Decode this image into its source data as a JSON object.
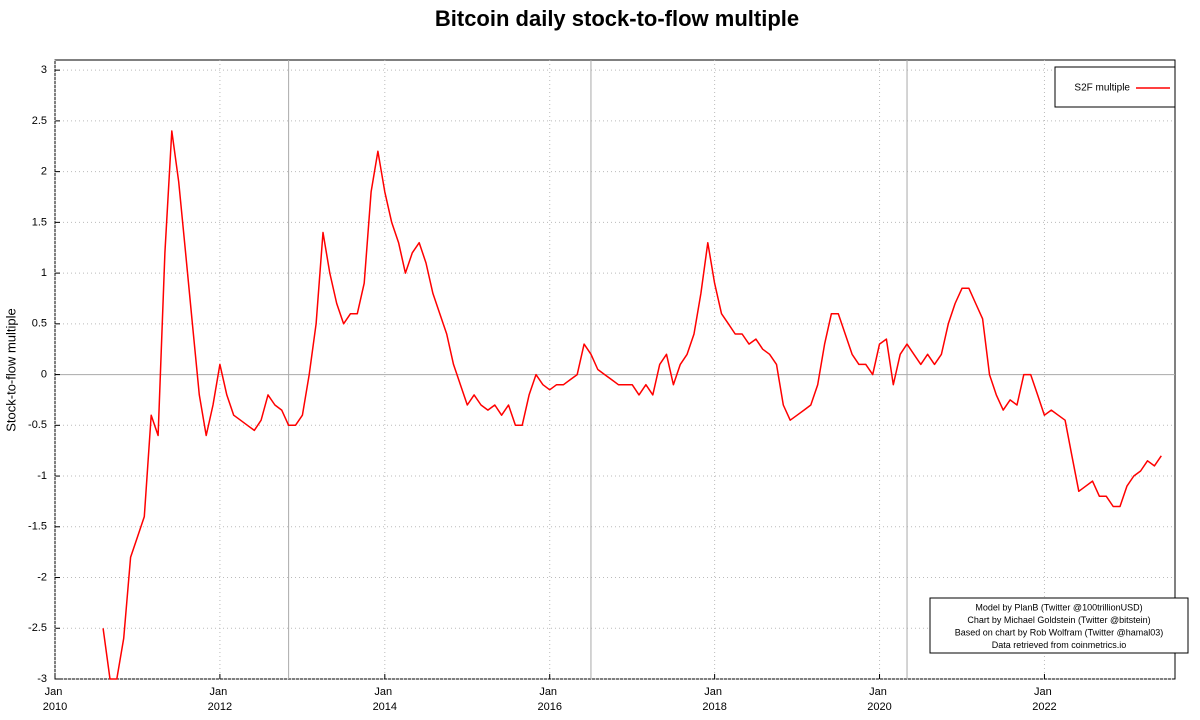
{
  "chart_data": {
    "type": "line",
    "title": "Bitcoin daily stock-to-flow multiple",
    "y_label": "Stock-to-flow multiple",
    "notes": [
      "Model by PlanB (Twitter @100trillionUSD)",
      "Chart by Michael Goldstein (Twitter @bitstein)",
      "Based on chart by Rob Wolfram (Twitter @hamal03)",
      "Data retrieved from coinmetrics.io"
    ],
    "legend": "top-right",
    "grid": true,
    "halvings": [
      "2012-11",
      "2016-07",
      "2020-05"
    ],
    "xlim": [
      "2010-01",
      "2023-08"
    ],
    "xticks": [
      {
        "value": "2010-01",
        "label": "Jan 2010"
      },
      {
        "value": "2012-01",
        "label": "Jan 2012"
      },
      {
        "value": "2014-01",
        "label": "Jan 2014"
      },
      {
        "value": "2016-01",
        "label": "Jan 2016"
      },
      {
        "value": "2018-01",
        "label": "Jan 2018"
      },
      {
        "value": "2020-01",
        "label": "Jan 2020"
      },
      {
        "value": "2022-01",
        "label": "Jan 2022"
      }
    ],
    "ylim": [
      -3,
      3.1
    ],
    "yticks": [
      -3,
      -2.5,
      -2,
      -1.5,
      -1,
      -0.5,
      0,
      0.5,
      1,
      1.5,
      2,
      2.5,
      3
    ],
    "x": [
      "2010-08",
      "2010-09",
      "2010-10",
      "2010-11",
      "2010-12",
      "2011-01",
      "2011-02",
      "2011-03",
      "2011-04",
      "2011-05",
      "2011-06",
      "2011-07",
      "2011-08",
      "2011-09",
      "2011-10",
      "2011-11",
      "2011-12",
      "2012-01",
      "2012-02",
      "2012-03",
      "2012-04",
      "2012-05",
      "2012-06",
      "2012-07",
      "2012-08",
      "2012-09",
      "2012-10",
      "2012-11",
      "2012-12",
      "2013-01",
      "2013-02",
      "2013-03",
      "2013-04",
      "2013-05",
      "2013-06",
      "2013-07",
      "2013-08",
      "2013-09",
      "2013-10",
      "2013-11",
      "2013-12",
      "2014-01",
      "2014-02",
      "2014-03",
      "2014-04",
      "2014-05",
      "2014-06",
      "2014-07",
      "2014-08",
      "2014-09",
      "2014-10",
      "2014-11",
      "2014-12",
      "2015-01",
      "2015-02",
      "2015-03",
      "2015-04",
      "2015-05",
      "2015-06",
      "2015-07",
      "2015-08",
      "2015-09",
      "2015-10",
      "2015-11",
      "2015-12",
      "2016-01",
      "2016-02",
      "2016-03",
      "2016-04",
      "2016-05",
      "2016-06",
      "2016-07",
      "2016-08",
      "2016-09",
      "2016-10",
      "2016-11",
      "2016-12",
      "2017-01",
      "2017-02",
      "2017-03",
      "2017-04",
      "2017-05",
      "2017-06",
      "2017-07",
      "2017-08",
      "2017-09",
      "2017-10",
      "2017-11",
      "2017-12",
      "2018-01",
      "2018-02",
      "2018-03",
      "2018-04",
      "2018-05",
      "2018-06",
      "2018-07",
      "2018-08",
      "2018-09",
      "2018-10",
      "2018-11",
      "2018-12",
      "2019-01",
      "2019-02",
      "2019-03",
      "2019-04",
      "2019-05",
      "2019-06",
      "2019-07",
      "2019-08",
      "2019-09",
      "2019-10",
      "2019-11",
      "2019-12",
      "2020-01",
      "2020-02",
      "2020-03",
      "2020-04",
      "2020-05",
      "2020-06",
      "2020-07",
      "2020-08",
      "2020-09",
      "2020-10",
      "2020-11",
      "2020-12",
      "2021-01",
      "2021-02",
      "2021-03",
      "2021-04",
      "2021-05",
      "2021-06",
      "2021-07",
      "2021-08",
      "2021-09",
      "2021-10",
      "2021-11",
      "2021-12",
      "2022-01",
      "2022-02",
      "2022-03",
      "2022-04",
      "2022-05",
      "2022-06",
      "2022-07",
      "2022-08",
      "2022-09",
      "2022-10",
      "2022-11",
      "2022-12",
      "2023-01",
      "2023-02",
      "2023-03",
      "2023-04",
      "2023-05",
      "2023-06"
    ],
    "series": [
      {
        "name": "S2F multiple",
        "color": "#ff0000",
        "values": [
          -2.5,
          -3,
          -3,
          -2.6,
          -1.8,
          -1.6,
          -1.4,
          -0.4,
          -0.6,
          1.2,
          2.4,
          1.9,
          1.2,
          0.5,
          -0.2,
          -0.6,
          -0.3,
          0.1,
          -0.2,
          -0.4,
          -0.45,
          -0.5,
          -0.55,
          -0.45,
          -0.2,
          -0.3,
          -0.35,
          -0.5,
          -0.5,
          -0.4,
          0,
          0.5,
          1.4,
          1,
          0.7,
          0.5,
          0.6,
          0.6,
          0.9,
          1.8,
          2.2,
          1.8,
          1.5,
          1.3,
          1,
          1.2,
          1.3,
          1.1,
          0.8,
          0.6,
          0.4,
          0.1,
          -0.1,
          -0.3,
          -0.2,
          -0.3,
          -0.35,
          -0.3,
          -0.4,
          -0.3,
          -0.5,
          -0.5,
          -0.2,
          0,
          -0.1,
          -0.15,
          -0.1,
          -0.1,
          -0.05,
          0,
          0.3,
          0.2,
          0.05,
          0,
          -0.05,
          -0.1,
          -0.1,
          -0.1,
          -0.2,
          -0.1,
          -0.2,
          0.1,
          0.2,
          -0.1,
          0.1,
          0.2,
          0.4,
          0.8,
          1.3,
          0.9,
          0.6,
          0.5,
          0.4,
          0.4,
          0.3,
          0.35,
          0.25,
          0.2,
          0.1,
          -0.3,
          -0.45,
          -0.4,
          -0.35,
          -0.3,
          -0.1,
          0.3,
          0.6,
          0.6,
          0.4,
          0.2,
          0.1,
          0.1,
          0,
          0.3,
          0.35,
          -0.1,
          0.2,
          0.3,
          0.2,
          0.1,
          0.2,
          0.1,
          0.2,
          0.5,
          0.7,
          0.85,
          0.85,
          0.7,
          0.55,
          0,
          -0.2,
          -0.35,
          -0.25,
          -0.3,
          0,
          0,
          -0.2,
          -0.4,
          -0.35,
          -0.4,
          -0.45,
          -0.8,
          -1.15,
          -1.1,
          -1.05,
          -1.2,
          -1.2,
          -1.3,
          -1.3,
          -1.1,
          -1,
          -0.95,
          -0.85,
          -0.9,
          -0.8
        ]
      }
    ]
  }
}
